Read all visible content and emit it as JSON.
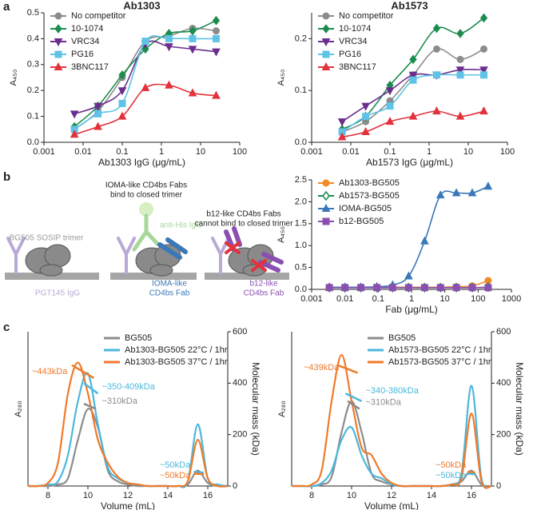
{
  "panel_labels": [
    "a",
    "b",
    "c"
  ],
  "diagram": {
    "trimer_label": "BG505 SOSIP trimer",
    "pgt145_label": "PGT145 IgG",
    "ioma_header": [
      "IOMA-like CD4bs Fabs",
      "bind to closed trimer"
    ],
    "antihis_label": "anti-His IgG",
    "ioma_fab_label": [
      "IOMA-like",
      "CD4bs Fab"
    ],
    "b12_header": [
      "b12-like CD4bs Fabs",
      "cannot bind to closed trimer"
    ],
    "b12_fab_label": [
      "b12-like",
      "CD4bs Fab"
    ]
  },
  "chart_data": [
    {
      "type": "line",
      "title": "Ab1303",
      "xlabel": "Ab1303 IgG (μg/mL)",
      "ylabel": "A₄₅₀",
      "xscale": "log",
      "xlim": [
        0.001,
        100
      ],
      "xticks": [
        0.001,
        0.01,
        0.1,
        1,
        10,
        100
      ],
      "ylim": [
        0,
        0.5
      ],
      "yticks": [
        {
          "value": 0,
          "label": "0.0"
        },
        0.1,
        0.2,
        0.3,
        0.4,
        0.5
      ],
      "legend": "upper left",
      "smooth": true,
      "x": [
        0.006,
        0.024,
        0.1,
        0.39,
        1.56,
        6.25,
        25
      ],
      "series": [
        {
          "name": "No competitor",
          "color": "#8c8c8c",
          "marker": "circle",
          "values": [
            0.05,
            0.12,
            0.25,
            0.39,
            0.41,
            0.44,
            0.43
          ]
        },
        {
          "name": "10-1074",
          "color": "#1b8c4e",
          "marker": "diamond",
          "values": [
            0.06,
            0.14,
            0.26,
            0.36,
            0.42,
            0.43,
            0.47
          ]
        },
        {
          "name": "VRC34",
          "color": "#6b2d8e",
          "marker": "triangle-down",
          "values": [
            0.11,
            0.14,
            0.2,
            0.38,
            0.37,
            0.36,
            0.35
          ]
        },
        {
          "name": "PG16",
          "color": "#5ec3e6",
          "marker": "square",
          "values": [
            0.05,
            0.11,
            0.15,
            0.39,
            0.4,
            0.4,
            0.4
          ]
        },
        {
          "name": "3BNC117",
          "color": "#e2323c",
          "marker": "triangle",
          "values": [
            0.03,
            0.06,
            0.1,
            0.21,
            0.22,
            0.19,
            0.18
          ]
        }
      ]
    },
    {
      "type": "line",
      "title": "Ab1573",
      "xlabel": "Ab1573 IgG (μg/mL)",
      "ylabel": "A₄₅₀",
      "xscale": "log",
      "xlim": [
        0.001,
        100
      ],
      "xticks": [
        0.001,
        0.01,
        0.1,
        1,
        10,
        100
      ],
      "ylim": [
        0,
        0.25
      ],
      "yticks": [
        {
          "value": 0,
          "label": "0.0"
        },
        0.1,
        0.2
      ],
      "legend": "upper left",
      "smooth": true,
      "x": [
        0.006,
        0.024,
        0.1,
        0.39,
        1.56,
        6.25,
        25
      ],
      "series": [
        {
          "name": "No competitor",
          "color": "#8c8c8c",
          "marker": "circle",
          "values": [
            0.02,
            0.04,
            0.08,
            0.13,
            0.18,
            0.16,
            0.18
          ]
        },
        {
          "name": "10-1074",
          "color": "#1b8c4e",
          "marker": "diamond",
          "values": [
            0.025,
            0.05,
            0.11,
            0.16,
            0.22,
            0.21,
            0.24
          ]
        },
        {
          "name": "VRC34",
          "color": "#6b2d8e",
          "marker": "triangle-down",
          "values": [
            0.04,
            0.07,
            0.1,
            0.13,
            0.13,
            0.14,
            0.14
          ]
        },
        {
          "name": "PG16",
          "color": "#5ec3e6",
          "marker": "square",
          "values": [
            0.02,
            0.05,
            0.07,
            0.12,
            0.13,
            0.13,
            0.13
          ]
        },
        {
          "name": "3BNC117",
          "color": "#e2323c",
          "marker": "triangle",
          "values": [
            0.01,
            0.02,
            0.04,
            0.05,
            0.06,
            0.05,
            0.06
          ]
        }
      ]
    },
    {
      "type": "line",
      "xlabel": "Fab (μg/mL)",
      "ylabel": "A₄₅₀",
      "xscale": "log",
      "xlim": [
        0.001,
        1000
      ],
      "xticks": [
        0.001,
        0.01,
        0.1,
        1,
        10,
        100,
        1000
      ],
      "ylim": [
        0,
        2.5
      ],
      "yticks": [
        {
          "value": 0,
          "label": "0.0"
        },
        0.5,
        {
          "value": 1,
          "label": "1.0"
        },
        1.5,
        {
          "value": 2,
          "label": "2.0"
        },
        2.5
      ],
      "legend": "upper left",
      "smooth": true,
      "x": [
        0.0034,
        0.01,
        0.03,
        0.091,
        0.27,
        0.82,
        2.47,
        7.4,
        22.2,
        66.7,
        200
      ],
      "series": [
        {
          "name": "Ab1303-BG505",
          "color": "#f08a24",
          "marker": "circle",
          "values": [
            0.05,
            0.05,
            0.05,
            0.05,
            0.05,
            0.05,
            0.05,
            0.05,
            0.06,
            0.08,
            0.2
          ]
        },
        {
          "name": "Ab1573-BG505",
          "color": "#1b8c4e",
          "marker": "diamond-open",
          "values": [
            0.04,
            0.04,
            0.04,
            0.04,
            0.04,
            0.04,
            0.04,
            0.04,
            0.04,
            0.04,
            0.05
          ]
        },
        {
          "name": "IOMA-BG505",
          "color": "#3a78b8",
          "marker": "triangle",
          "values": [
            0.05,
            0.05,
            0.05,
            0.06,
            0.1,
            0.3,
            1.1,
            2.15,
            2.2,
            2.2,
            2.35
          ]
        },
        {
          "name": "b12-BG505",
          "color": "#8a4fb0",
          "marker": "square",
          "values": [
            0.04,
            0.04,
            0.04,
            0.04,
            0.04,
            0.04,
            0.04,
            0.04,
            0.04,
            0.04,
            0.04
          ]
        }
      ]
    },
    {
      "type": "sec",
      "xlabel": "Volume (mL)",
      "ylabel": "A₂₈₀",
      "y2label": "Molecular mass (kDa)",
      "xlim": [
        7,
        17
      ],
      "xticks": [
        8,
        10,
        12,
        14,
        16
      ],
      "ylim": [
        0,
        1
      ],
      "y2lim": [
        0,
        600
      ],
      "y2ticks": [
        0,
        200,
        400,
        600
      ],
      "legend": "upper center",
      "x": [
        7,
        7.5,
        8,
        8.5,
        9,
        9.5,
        10,
        10.5,
        11,
        11.5,
        12,
        12.5,
        13,
        13.5,
        14,
        14.5,
        15,
        15.5,
        16,
        16.5,
        17
      ],
      "series": [
        {
          "name": "BG505",
          "color": "#8c8c8c",
          "values": [
            0,
            0,
            0,
            0.01,
            0.05,
            0.3,
            0.5,
            0.38,
            0.1,
            0.03,
            0.01,
            0,
            0,
            0,
            0,
            0,
            0.01,
            0.1,
            0.02,
            0,
            0
          ]
        },
        {
          "name": "Ab1303-BG505 22°C / 1hr",
          "color": "#4bb8dc",
          "values": [
            0,
            0,
            0.01,
            0.03,
            0.2,
            0.55,
            0.73,
            0.4,
            0.12,
            0.05,
            0.02,
            0.01,
            0,
            0,
            0,
            0,
            0.03,
            0.4,
            0.05,
            0.01,
            0
          ]
        },
        {
          "name": "Ab1303-BG505 37°C / 1hr",
          "color": "#f07a2a",
          "values": [
            0,
            0,
            0.02,
            0.15,
            0.6,
            0.8,
            0.6,
            0.3,
            0.15,
            0.06,
            0.02,
            0.01,
            0,
            0,
            0,
            0,
            0.03,
            0.3,
            0.05,
            0,
            0
          ]
        }
      ],
      "mass_series": [
        {
          "color": "#f07a2a",
          "axis": "y2",
          "x": [
            9.2,
            10.3
          ],
          "values": [
            470,
            420
          ]
        },
        {
          "color": "#4bb8dc",
          "axis": "y2",
          "x": [
            9.8,
            10.5
          ],
          "values": [
            400,
            360
          ]
        },
        {
          "color": "#8c8c8c",
          "axis": "y2",
          "x": [
            9.8,
            10.4
          ],
          "values": [
            320,
            300
          ]
        },
        {
          "color": "#4bb8dc",
          "axis": "y2",
          "x": [
            15.3,
            15.8
          ],
          "values": [
            55,
            52
          ]
        },
        {
          "color": "#f07a2a",
          "axis": "y2",
          "x": [
            15.3,
            15.8
          ],
          "values": [
            48,
            46
          ]
        }
      ],
      "annotations": [
        {
          "text": "~443kDa",
          "color": "#f07a2a"
        },
        {
          "text": "~350-409kDa",
          "color": "#4bb8dc"
        },
        {
          "text": "~310kDa",
          "color": "#8c8c8c"
        },
        {
          "text": "~50kDa",
          "color": "#4bb8dc"
        },
        {
          "text": "~50kDa",
          "color": "#f07a2a"
        }
      ]
    },
    {
      "type": "sec",
      "xlabel": "Volume (mL)",
      "ylabel": "A₂₈₀",
      "y2label": "Molecular mass (kDa)",
      "xlim": [
        7,
        17
      ],
      "xticks": [
        8,
        10,
        12,
        14,
        16
      ],
      "ylim": [
        0,
        1
      ],
      "y2lim": [
        0,
        600
      ],
      "y2ticks": [
        0,
        200,
        400,
        600
      ],
      "legend": "upper center",
      "x": [
        7,
        7.5,
        8,
        8.5,
        9,
        9.5,
        10,
        10.5,
        11,
        11.5,
        12,
        12.5,
        13,
        13.5,
        14,
        14.5,
        15,
        15.5,
        16,
        16.5,
        17
      ],
      "series": [
        {
          "name": "BG505",
          "color": "#8c8c8c",
          "values": [
            0,
            0,
            0,
            0.01,
            0.06,
            0.35,
            0.55,
            0.35,
            0.08,
            0.03,
            0.01,
            0,
            0,
            0,
            0,
            0,
            0.01,
            0.03,
            0.1,
            0.01,
            0
          ]
        },
        {
          "name": "Ab1573-BG505 22°C / 1hr",
          "color": "#4bb8dc",
          "values": [
            0,
            0,
            0,
            0.02,
            0.1,
            0.3,
            0.38,
            0.2,
            0.08,
            0.05,
            0.01,
            0,
            0,
            0,
            0,
            0,
            0.01,
            0.08,
            0.65,
            0.05,
            0
          ]
        },
        {
          "name": "Ab1573-BG505 37°C / 1hr",
          "color": "#f07a2a",
          "values": [
            0,
            0,
            0.01,
            0.1,
            0.55,
            0.85,
            0.55,
            0.25,
            0.2,
            0.08,
            0.02,
            0,
            0,
            0,
            0,
            0,
            0.01,
            0.05,
            0.47,
            0.03,
            0
          ]
        }
      ],
      "mass_series": [
        {
          "color": "#f07a2a",
          "axis": "y2",
          "x": [
            9.3,
            10.3
          ],
          "values": [
            470,
            440
          ]
        },
        {
          "color": "#4bb8dc",
          "axis": "y2",
          "x": [
            9.7,
            10.5
          ],
          "values": [
            360,
            330
          ]
        },
        {
          "color": "#8c8c8c",
          "axis": "y2",
          "x": [
            9.8,
            10.4
          ],
          "values": [
            330,
            300
          ]
        },
        {
          "color": "#f07a2a",
          "axis": "y2",
          "x": [
            15.8,
            16.2
          ],
          "values": [
            55,
            52
          ]
        },
        {
          "color": "#4bb8dc",
          "axis": "y2",
          "x": [
            15.8,
            16.2
          ],
          "values": [
            48,
            46
          ]
        }
      ],
      "annotations": [
        {
          "text": "~439kDa",
          "color": "#f07a2a"
        },
        {
          "text": "~340-380kDa",
          "color": "#4bb8dc"
        },
        {
          "text": "~310kDa",
          "color": "#8c8c8c"
        },
        {
          "text": "~50kDa",
          "color": "#f07a2a"
        },
        {
          "text": "~50kDa",
          "color": "#4bb8dc"
        }
      ]
    }
  ]
}
